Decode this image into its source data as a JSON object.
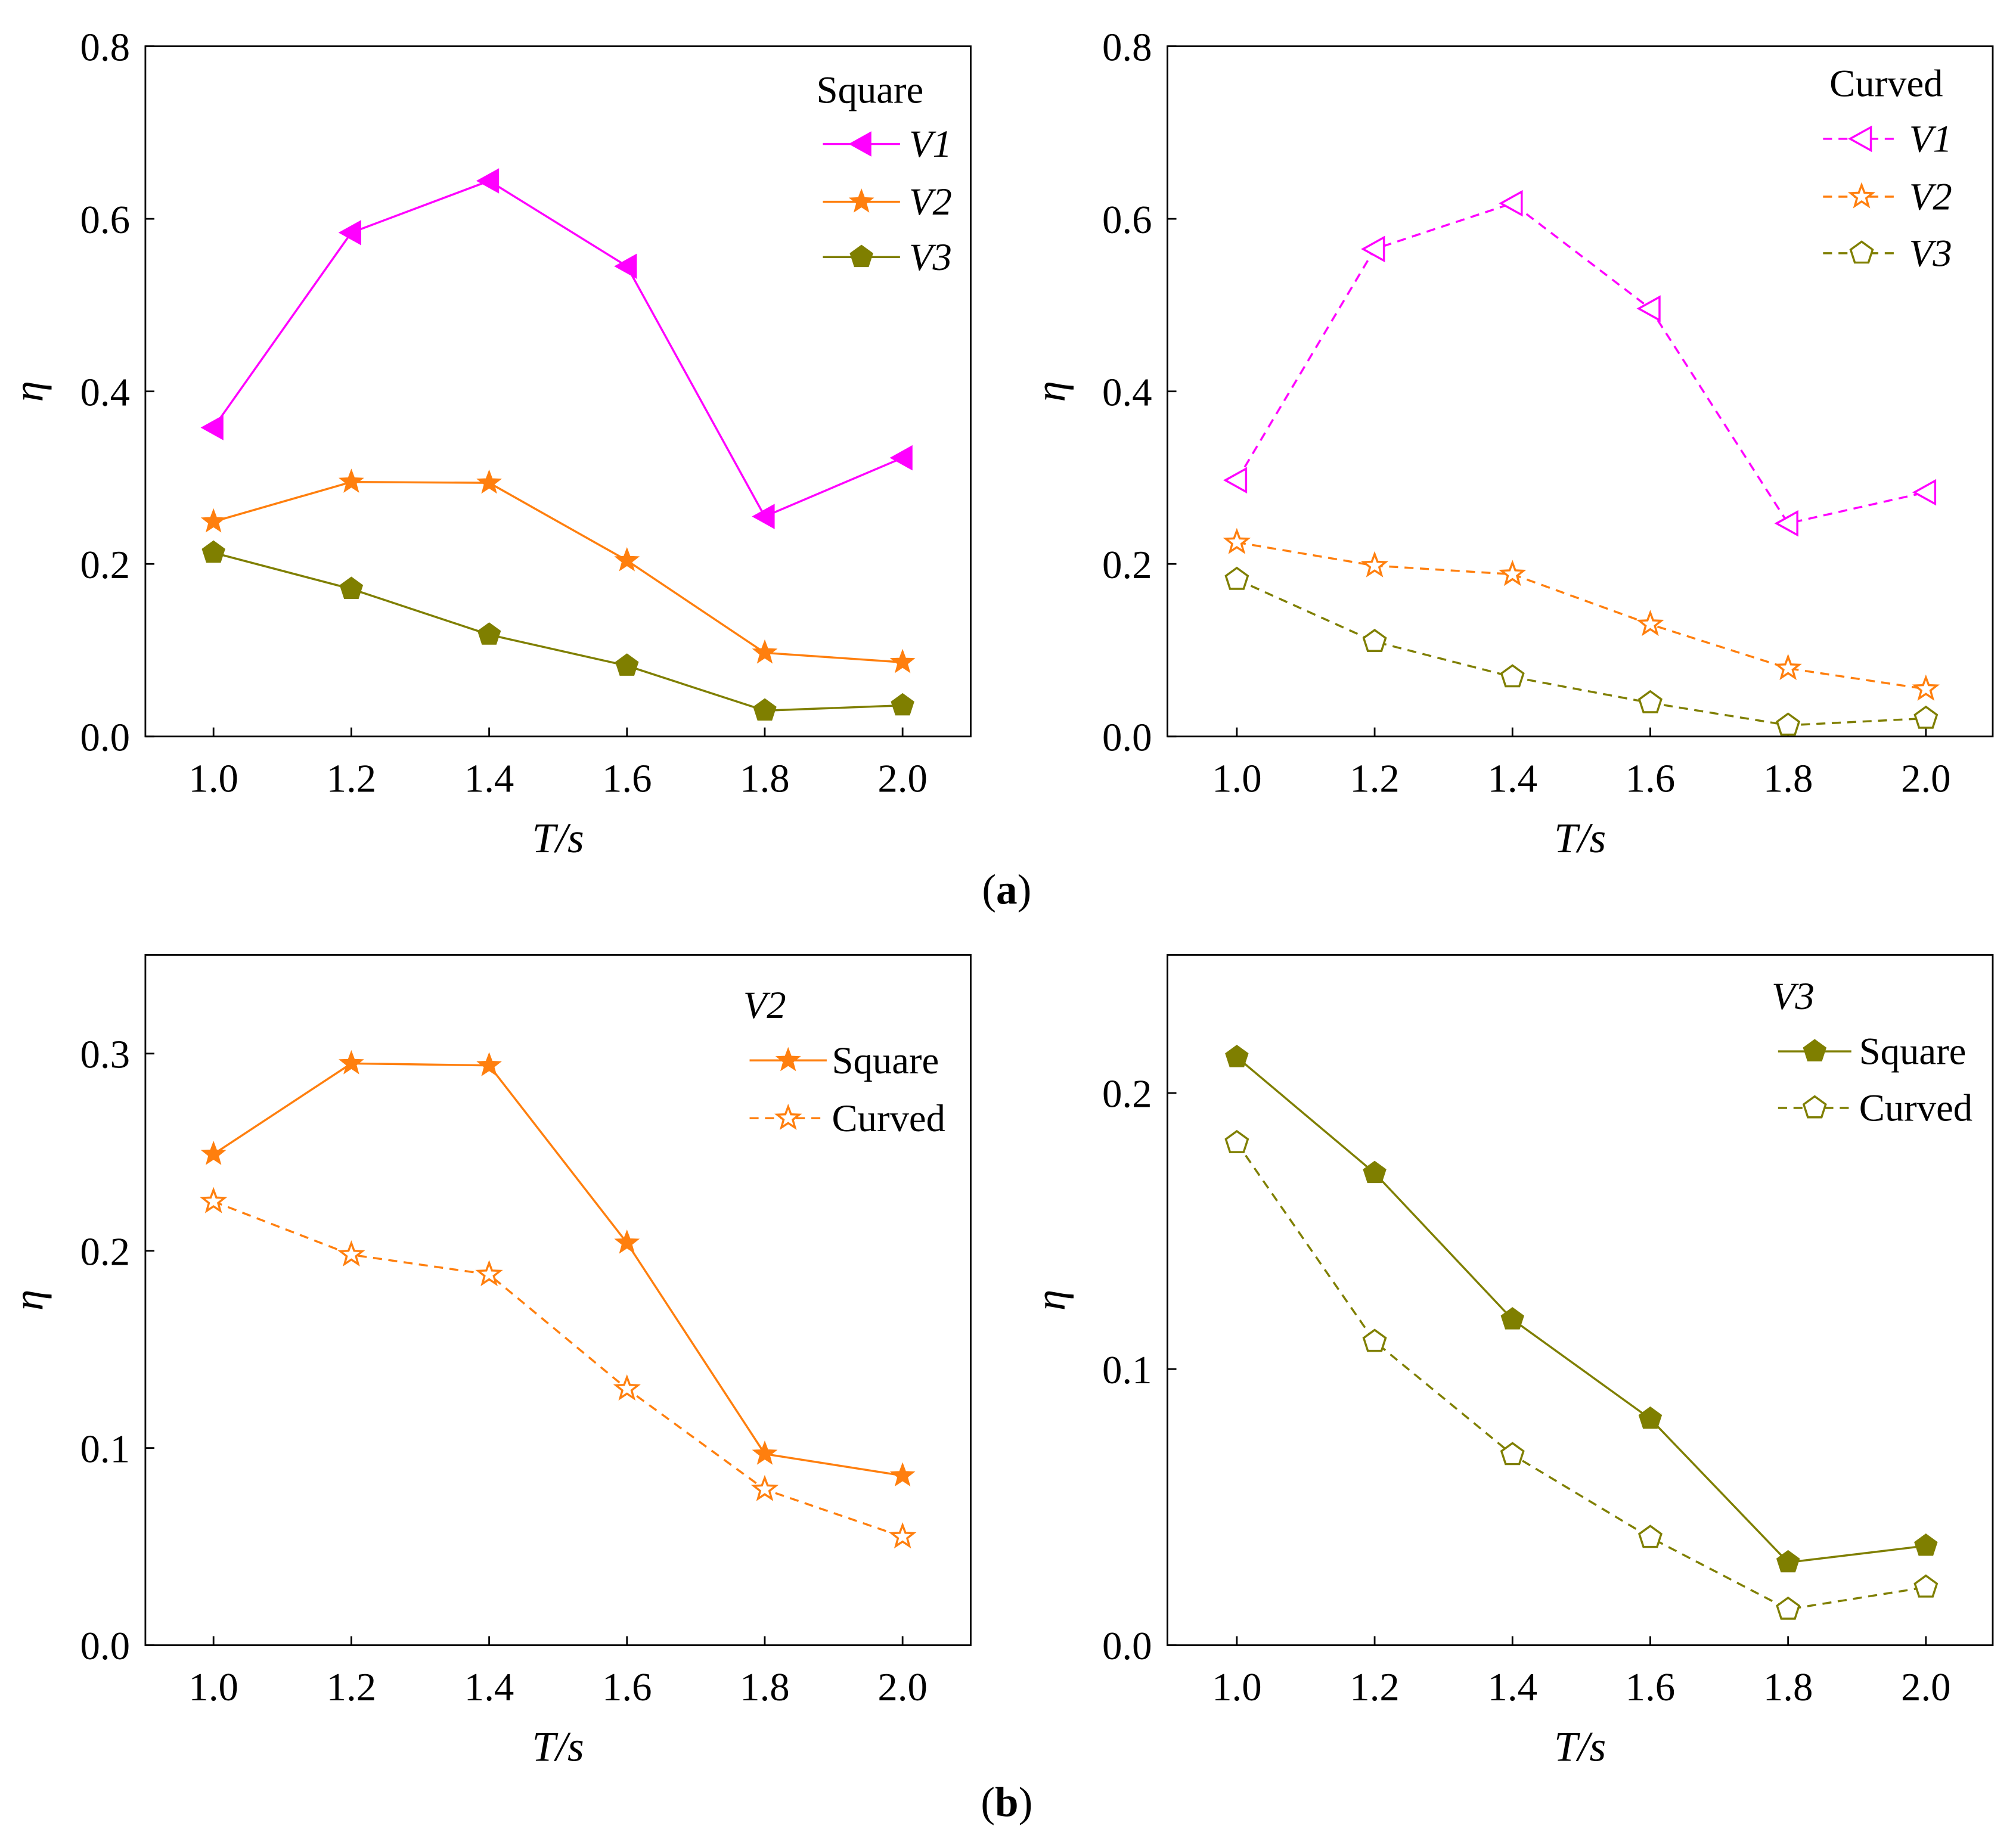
{
  "figure_labels": {
    "a": "(a)",
    "a_letter": "a",
    "b": "(b)",
    "b_letter": "b"
  },
  "chart_data": [
    {
      "type": "line",
      "panel": "a-left",
      "legend_title": "Square",
      "legend_placement": "top-right",
      "xlabel": "T/s",
      "ylabel": "η",
      "x": [
        1.0,
        1.2,
        1.4,
        1.6,
        1.8,
        2.0
      ],
      "xticks": [
        "1.0",
        "1.2",
        "1.4",
        "1.6",
        "1.8",
        "2.0"
      ],
      "ylim": [
        0,
        0.8
      ],
      "yticks": [
        "0.0",
        "0.2",
        "0.4",
        "0.6",
        "0.8"
      ],
      "ytick_values": [
        0,
        0.2,
        0.4,
        0.6,
        0.8
      ],
      "series": [
        {
          "name": "V1",
          "color": "#ff00ff",
          "marker": "triangle-left",
          "filled": true,
          "dashed": false,
          "values": [
            0.358,
            0.584,
            0.644,
            0.545,
            0.255,
            0.323
          ]
        },
        {
          "name": "V2",
          "color": "#ff7f0e",
          "marker": "star",
          "filled": true,
          "dashed": false,
          "values": [
            0.249,
            0.295,
            0.294,
            0.204,
            0.097,
            0.086
          ]
        },
        {
          "name": "V3",
          "color": "#7f7f00",
          "marker": "pentagon",
          "filled": true,
          "dashed": false,
          "values": [
            0.213,
            0.171,
            0.118,
            0.082,
            0.03,
            0.036
          ]
        }
      ]
    },
    {
      "type": "line",
      "panel": "a-right",
      "legend_title": "Curved",
      "legend_placement": "top-right",
      "xlabel": "T/s",
      "ylabel": "η",
      "x": [
        1.0,
        1.2,
        1.4,
        1.6,
        1.8,
        2.0
      ],
      "xticks": [
        "1.0",
        "1.2",
        "1.4",
        "1.6",
        "1.8",
        "2.0"
      ],
      "ylim": [
        0,
        0.8
      ],
      "yticks": [
        "0.0",
        "0.2",
        "0.4",
        "0.6",
        "0.8"
      ],
      "ytick_values": [
        0,
        0.2,
        0.4,
        0.6,
        0.8
      ],
      "series": [
        {
          "name": "V1",
          "color": "#ff00ff",
          "marker": "triangle-left",
          "filled": false,
          "dashed": true,
          "values": [
            0.297,
            0.565,
            0.618,
            0.496,
            0.247,
            0.283
          ]
        },
        {
          "name": "V2",
          "color": "#ff7f0e",
          "marker": "star",
          "filled": false,
          "dashed": true,
          "values": [
            0.225,
            0.198,
            0.188,
            0.13,
            0.079,
            0.055
          ]
        },
        {
          "name": "V3",
          "color": "#7f7f00",
          "marker": "pentagon",
          "filled": false,
          "dashed": true,
          "values": [
            0.182,
            0.11,
            0.069,
            0.039,
            0.013,
            0.021
          ]
        }
      ]
    },
    {
      "type": "line",
      "panel": "b-left",
      "legend_title": "V2",
      "legend_placement": "top-right",
      "xlabel": "T/s",
      "ylabel": "η",
      "x": [
        1.0,
        1.2,
        1.4,
        1.6,
        1.8,
        2.0
      ],
      "xticks": [
        "1.0",
        "1.2",
        "1.4",
        "1.6",
        "1.8",
        "2.0"
      ],
      "ylim": [
        0,
        0.35
      ],
      "yticks": [
        "0.0",
        "0.1",
        "0.2",
        "0.3"
      ],
      "ytick_values": [
        0,
        0.1,
        0.2,
        0.3
      ],
      "series": [
        {
          "name": "Square",
          "color": "#ff7f0e",
          "marker": "star",
          "filled": true,
          "dashed": false,
          "values": [
            0.249,
            0.295,
            0.294,
            0.204,
            0.097,
            0.086
          ]
        },
        {
          "name": "Curved",
          "color": "#ff7f0e",
          "marker": "star",
          "filled": false,
          "dashed": true,
          "values": [
            0.225,
            0.198,
            0.188,
            0.13,
            0.079,
            0.055
          ]
        }
      ]
    },
    {
      "type": "line",
      "panel": "b-right",
      "legend_title": "V3",
      "legend_placement": "top-right",
      "xlabel": "T/s",
      "ylabel": "η",
      "x": [
        1.0,
        1.2,
        1.4,
        1.6,
        1.8,
        2.0
      ],
      "xticks": [
        "1.0",
        "1.2",
        "1.4",
        "1.6",
        "1.8",
        "2.0"
      ],
      "ylim": [
        0,
        0.25
      ],
      "yticks": [
        "0.0",
        "0.1",
        "0.2"
      ],
      "ytick_values": [
        0,
        0.1,
        0.2
      ],
      "series": [
        {
          "name": "Square",
          "color": "#7f7f00",
          "marker": "pentagon",
          "filled": true,
          "dashed": false,
          "values": [
            0.213,
            0.171,
            0.118,
            0.082,
            0.03,
            0.036
          ]
        },
        {
          "name": "Curved",
          "color": "#7f7f00",
          "marker": "pentagon",
          "filled": false,
          "dashed": true,
          "values": [
            0.182,
            0.11,
            0.069,
            0.039,
            0.013,
            0.021
          ]
        }
      ]
    }
  ]
}
